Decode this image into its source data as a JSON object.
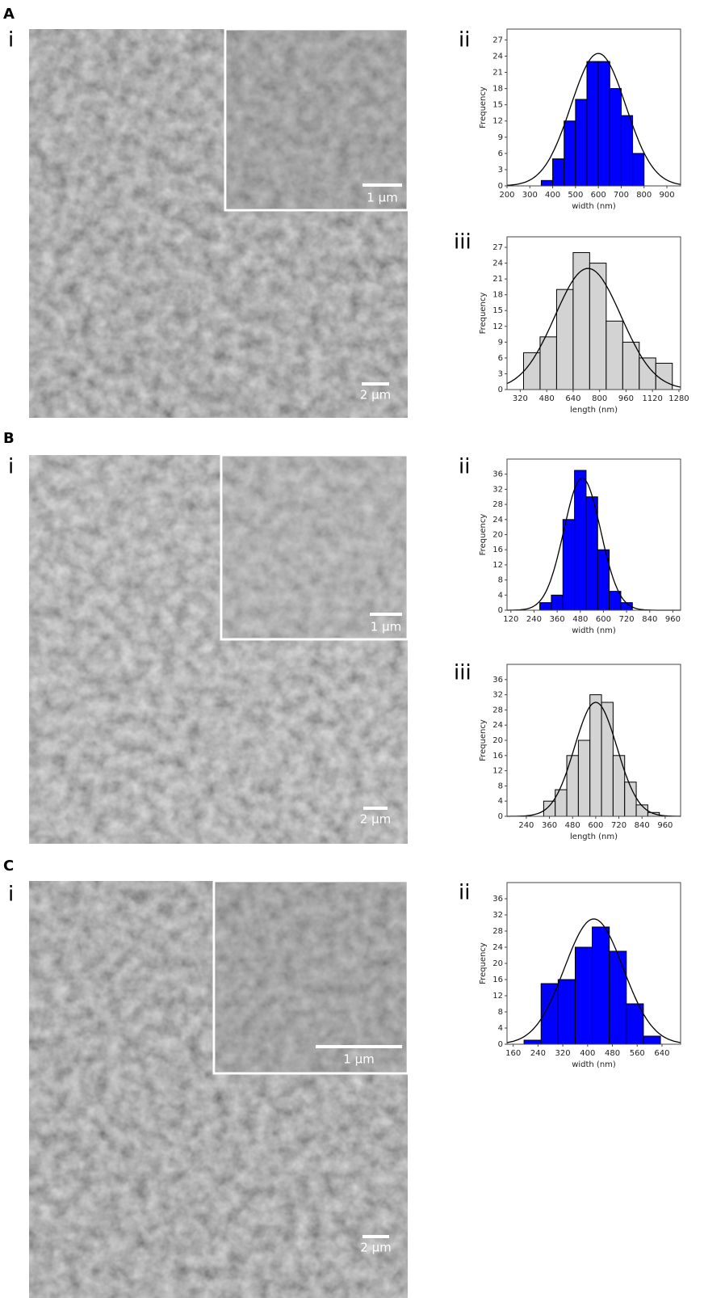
{
  "figure": {
    "panels": [
      {
        "label": "A",
        "image_label": "i",
        "scale_bar": "2 µm",
        "inset_scale_bar": "1 µm",
        "chart_labels": [
          "ii",
          "iii"
        ]
      },
      {
        "label": "B",
        "image_label": "i",
        "scale_bar": "2 µm",
        "inset_scale_bar": "1 µm",
        "chart_labels": [
          "ii",
          "iii"
        ]
      },
      {
        "label": "C",
        "image_label": "i",
        "scale_bar": "2 µm",
        "inset_scale_bar": "1 µm",
        "chart_labels": [
          "ii"
        ]
      }
    ]
  },
  "chart_data": [
    {
      "type": "histogram",
      "xlabel": "width (nm)",
      "ylabel": "Frequency",
      "color": "#0000ff",
      "bins": [
        350,
        400,
        450,
        500,
        550,
        600,
        650,
        700,
        750,
        800
      ],
      "values": [
        1,
        5,
        12,
        16,
        23,
        23,
        18,
        13,
        6
      ],
      "xlim": [
        200,
        960
      ],
      "xticks": [
        200,
        300,
        400,
        500,
        600,
        700,
        800,
        900
      ],
      "ylim": [
        0,
        29
      ],
      "yticks": [
        0,
        3,
        6,
        9,
        12,
        15,
        18,
        21,
        24,
        27
      ],
      "fit": {
        "mean": 600,
        "sd": 120,
        "peak": 24.5
      }
    },
    {
      "type": "histogram",
      "xlabel": "length (nm)",
      "ylabel": "Frequency",
      "color": "#d3d3d3",
      "bins": [
        340,
        440,
        540,
        640,
        740,
        840,
        940,
        1040,
        1140,
        1240
      ],
      "values": [
        7,
        10,
        19,
        26,
        24,
        13,
        9,
        6,
        5
      ],
      "xlim": [
        240,
        1290
      ],
      "xticks": [
        320,
        480,
        640,
        800,
        960,
        1120,
        1280
      ],
      "ylim": [
        0,
        29
      ],
      "yticks": [
        0,
        3,
        6,
        9,
        12,
        15,
        18,
        21,
        24,
        27
      ],
      "fit": {
        "mean": 730,
        "sd": 200,
        "peak": 23
      }
    },
    {
      "type": "histogram",
      "xlabel": "width (nm)",
      "ylabel": "Frequency",
      "color": "#0000ff",
      "bins": [
        270,
        330,
        390,
        450,
        510,
        570,
        630,
        690,
        750,
        810
      ],
      "values": [
        2,
        4,
        24,
        37,
        30,
        16,
        5,
        2,
        0
      ],
      "xlim": [
        100,
        1000
      ],
      "xticks": [
        120,
        240,
        360,
        480,
        600,
        720,
        840,
        960
      ],
      "ylim": [
        0,
        40
      ],
      "yticks": [
        0,
        4,
        8,
        12,
        16,
        20,
        24,
        28,
        32,
        36
      ],
      "fit": {
        "mean": 490,
        "sd": 95,
        "peak": 35
      }
    },
    {
      "type": "histogram",
      "xlabel": "length (nm)",
      "ylabel": "Frequency",
      "color": "#d3d3d3",
      "bins": [
        330,
        390,
        450,
        510,
        570,
        630,
        690,
        750,
        810,
        870,
        930
      ],
      "values": [
        4,
        7,
        16,
        20,
        32,
        30,
        16,
        9,
        3,
        1
      ],
      "xlim": [
        140,
        1040
      ],
      "xticks": [
        240,
        360,
        480,
        600,
        720,
        840,
        960
      ],
      "ylim": [
        0,
        40
      ],
      "yticks": [
        0,
        4,
        8,
        12,
        16,
        20,
        24,
        28,
        32,
        36
      ],
      "fit": {
        "mean": 600,
        "sd": 110,
        "peak": 30
      }
    },
    {
      "type": "histogram",
      "xlabel": "width (nm)",
      "ylabel": "Frequency",
      "color": "#0000ff",
      "bins": [
        195,
        250,
        305,
        360,
        415,
        470,
        525,
        580,
        635
      ],
      "values": [
        1,
        15,
        16,
        24,
        29,
        23,
        10,
        2
      ],
      "xlim": [
        140,
        700
      ],
      "xticks": [
        160,
        240,
        320,
        400,
        480,
        560,
        640
      ],
      "ylim": [
        0,
        40
      ],
      "yticks": [
        0,
        4,
        8,
        12,
        16,
        20,
        24,
        28,
        32,
        36
      ],
      "fit": {
        "mean": 420,
        "sd": 95,
        "peak": 31
      }
    }
  ]
}
